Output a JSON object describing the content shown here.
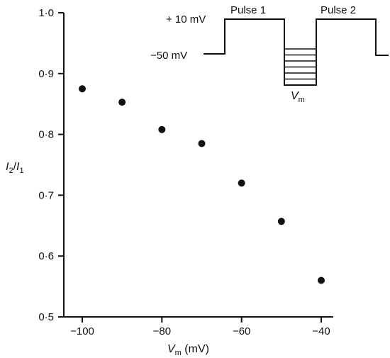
{
  "chart_data": {
    "type": "scatter",
    "xlabel": {
      "main": "V",
      "sub": "m",
      "unit": " (mV)"
    },
    "ylabel": {
      "i2": "I",
      "i2sub": "2",
      "slash": "/",
      "i1": "I",
      "i1sub": "1"
    },
    "xlim": [
      -100,
      -40
    ],
    "ylim": [
      0.5,
      1.0
    ],
    "x_ticks": [
      -100,
      -80,
      -60,
      -40
    ],
    "x_tick_labels": [
      "−100",
      "−80",
      "−60",
      "−40"
    ],
    "y_ticks": [
      0.5,
      0.6,
      0.7,
      0.8,
      0.9,
      1.0
    ],
    "y_tick_labels": [
      "0·5",
      "0·6",
      "0·7",
      "0·8",
      "0·9",
      "1·0"
    ],
    "grid": false,
    "points": [
      {
        "x": -100,
        "y": 0.875
      },
      {
        "x": -90,
        "y": 0.853
      },
      {
        "x": -80,
        "y": 0.808
      },
      {
        "x": -70,
        "y": 0.785
      },
      {
        "x": -60,
        "y": 0.72
      },
      {
        "x": -50,
        "y": 0.657
      },
      {
        "x": -40,
        "y": 0.56
      }
    ],
    "inset": {
      "high_label": "+ 10 mV",
      "low_label": "−50 mV",
      "pulse1_label": "Pulse 1",
      "pulse2_label": "Pulse 2",
      "vm_label": "V",
      "vm_sub": "m",
      "step_count": 7
    }
  }
}
